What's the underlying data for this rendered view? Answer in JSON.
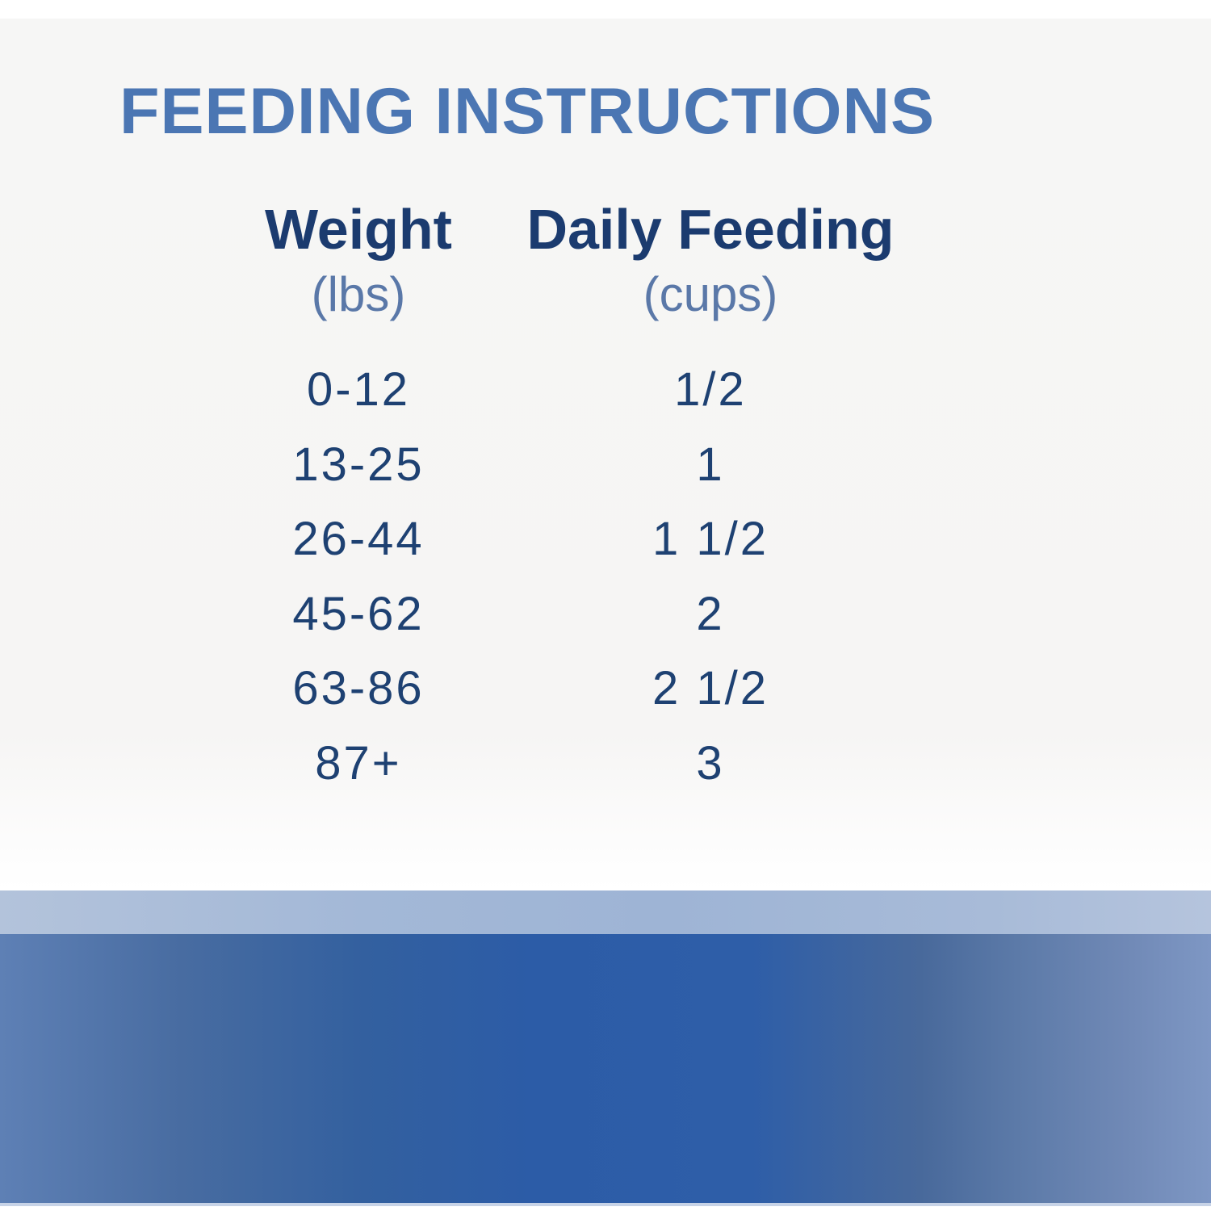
{
  "title": "FEEDING INSTRUCTIONS",
  "chart_data": {
    "type": "table",
    "title": "FEEDING INSTRUCTIONS",
    "columns": [
      {
        "label": "Weight",
        "unit": "(lbs)"
      },
      {
        "label": "Daily Feeding",
        "unit": "(cups)"
      }
    ],
    "rows": [
      {
        "weight_lbs": "0-12",
        "daily_feeding_cups": "1/2"
      },
      {
        "weight_lbs": "13-25",
        "daily_feeding_cups": "1"
      },
      {
        "weight_lbs": "26-44",
        "daily_feeding_cups": "1 1/2"
      },
      {
        "weight_lbs": "45-62",
        "daily_feeding_cups": "2"
      },
      {
        "weight_lbs": "63-86",
        "daily_feeding_cups": "2 1/2"
      },
      {
        "weight_lbs": "87+",
        "daily_feeding_cups": "3"
      }
    ]
  },
  "colors": {
    "title_blue": "#4b76b3",
    "header_navy": "#1b3b6f",
    "unit_slate": "#5a78a8",
    "value_navy": "#1e4172",
    "panel_gray": "#f6f6f5",
    "band_light": "#a3b8d7",
    "band_dark_center": "#2d5da7",
    "band_dark_edge": "#5e80b5"
  }
}
